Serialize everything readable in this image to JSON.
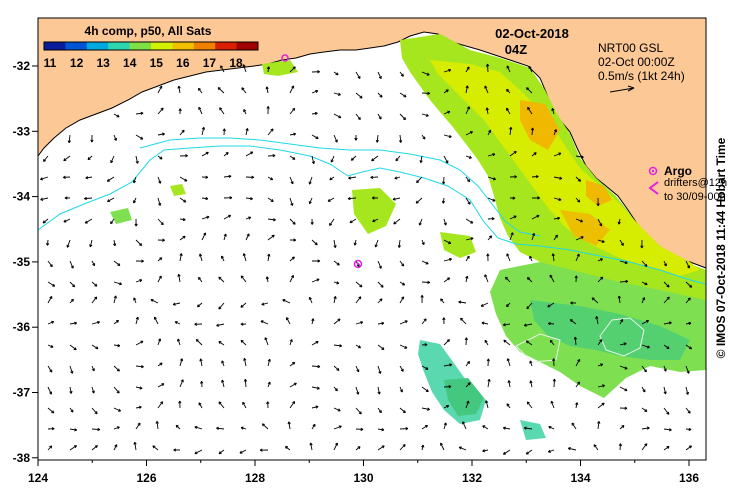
{
  "header": {
    "date": "02-Oct-2018",
    "time": "04Z"
  },
  "colorbar": {
    "title": "4h comp, p50, All Sats",
    "ticks": [
      "11",
      "12",
      "13",
      "14",
      "15",
      "16",
      "17",
      "18"
    ],
    "colors": [
      "#0a1e9c",
      "#0054d6",
      "#00a8e0",
      "#2ed6b0",
      "#7fe046",
      "#d2f000",
      "#f0c000",
      "#f08000",
      "#d82000",
      "#a00000"
    ]
  },
  "current_legend": {
    "line1": "NRT00 GSL",
    "line2": "02-Oct 00:00Z",
    "line3": "0.5m/s (1kt 24h)"
  },
  "argo_legend": {
    "label": "Argo",
    "drifters_line1": "drifters@12h",
    "drifters_line2": "to 30/09-00h",
    "argo_color": "#e020e0"
  },
  "axes": {
    "x_ticks": [
      "124",
      "126",
      "128",
      "130",
      "132",
      "134",
      "136"
    ],
    "y_ticks": [
      "-32",
      "-33",
      "-34",
      "-35",
      "-36",
      "-37",
      "-38"
    ]
  },
  "side_caption": "© IMOS 07-Oct-2018 11:44 Hobart Time",
  "colors": {
    "land": "#fcc896",
    "sea": "#ffffff",
    "contour": "#20d8e8"
  }
}
